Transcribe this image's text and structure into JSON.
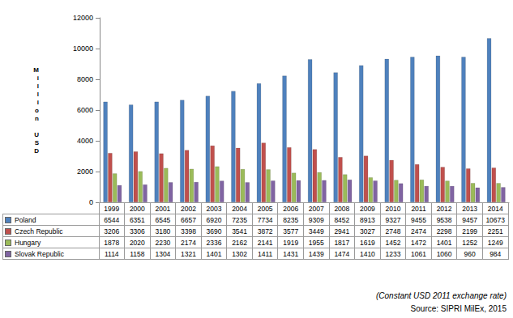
{
  "chart_data": {
    "type": "bar",
    "y_label": "Million USD",
    "categories": [
      "1999",
      "2000",
      "2001",
      "2002",
      "2003",
      "2004",
      "2005",
      "2006",
      "2007",
      "2008",
      "2009",
      "2010",
      "2011",
      "2012",
      "2013",
      "2014"
    ],
    "series": [
      {
        "name": "Poland",
        "color": "#4f81bd",
        "values": [
          6544,
          6351,
          6545,
          6657,
          6920,
          7235,
          7734,
          8235,
          9309,
          8452,
          8913,
          9327,
          9455,
          9538,
          9457,
          10673
        ]
      },
      {
        "name": "Czech Republic",
        "color": "#c0504d",
        "values": [
          3206,
          3306,
          3180,
          3398,
          3690,
          3541,
          3872,
          3577,
          3449,
          2941,
          3027,
          2748,
          2474,
          2298,
          2199,
          2251
        ]
      },
      {
        "name": "Hungary",
        "color": "#9bbb59",
        "values": [
          1878,
          2020,
          2230,
          2174,
          2336,
          2162,
          2141,
          1919,
          1955,
          1817,
          1619,
          1452,
          1472,
          1401,
          1252,
          1249
        ]
      },
      {
        "name": "Slovak Republic",
        "color": "#8064a2",
        "values": [
          1114,
          1158,
          1304,
          1321,
          1401,
          1302,
          1411,
          1431,
          1439,
          1474,
          1410,
          1233,
          1061,
          1060,
          960,
          984
        ]
      }
    ],
    "ylim": [
      0,
      12000
    ],
    "yticks": [
      0,
      2000,
      4000,
      6000,
      8000,
      10000,
      12000
    ],
    "grid": false,
    "annotations": [
      "(Constant USD 2011 exchange rate)",
      "Source: SIPRI MilEx, 2015"
    ]
  }
}
